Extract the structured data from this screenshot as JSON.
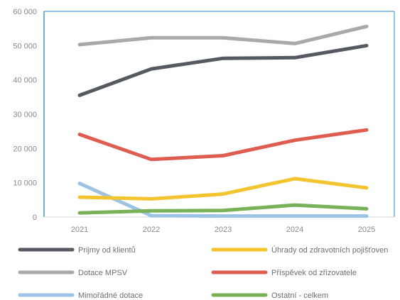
{
  "chart_data": {
    "type": "line",
    "title": "",
    "xlabel": "",
    "ylabel": "",
    "categories": [
      "2021",
      "2022",
      "2023",
      "2024",
      "2025"
    ],
    "ylim": [
      0,
      60000
    ],
    "yticks": [
      0,
      10000,
      20000,
      30000,
      40000,
      50000,
      60000
    ],
    "ytick_labels": [
      "0",
      "10 000",
      "20 000",
      "30 000",
      "40 000",
      "50 000",
      "60 000"
    ],
    "grid": false,
    "legend_position": "bottom",
    "series": [
      {
        "name": "Prijmy od klientů",
        "color": "#555a60",
        "values": [
          35500,
          43200,
          46300,
          46500,
          50000
        ]
      },
      {
        "name": "Úhrady od zdravotních pojišťoven",
        "color": "#f2c530",
        "values": [
          5800,
          5300,
          6700,
          11200,
          8500
        ]
      },
      {
        "name": "Dotace MPSV",
        "color": "#a9a9a9",
        "values": [
          50300,
          52300,
          52300,
          50600,
          55600
        ]
      },
      {
        "name": "Příspěvek od zřizovatele",
        "color": "#de5c50",
        "values": [
          24100,
          16800,
          17900,
          22400,
          25400
        ]
      },
      {
        "name": "Mimořádné dotace",
        "color": "#9cc2e4",
        "values": [
          9800,
          400,
          300,
          300,
          300
        ]
      },
      {
        "name": "Ostatní - celkem",
        "color": "#79b159",
        "values": [
          1200,
          1800,
          1900,
          3500,
          2400
        ]
      }
    ]
  }
}
